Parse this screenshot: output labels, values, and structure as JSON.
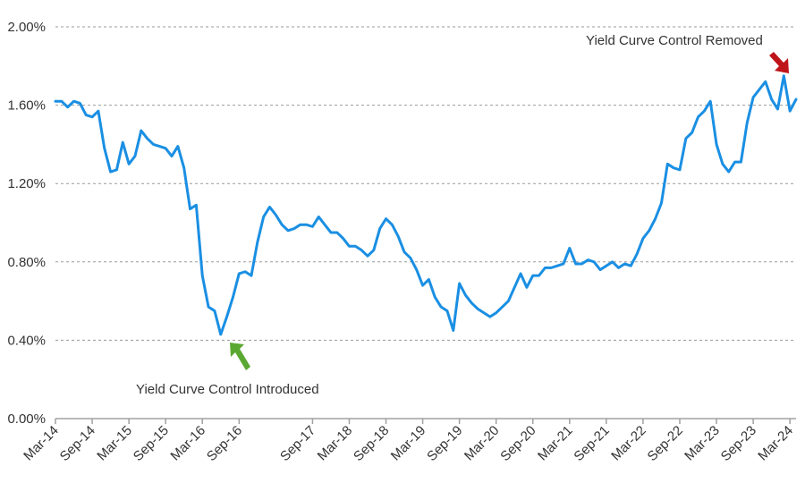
{
  "chart_data": {
    "type": "line",
    "title": "",
    "xlabel": "",
    "ylabel": "",
    "ylim": [
      0,
      2.0
    ],
    "grid": "horizontal dashed",
    "y_ticks": [
      "0.00%",
      "0.40%",
      "0.80%",
      "1.20%",
      "1.60%",
      "2.00%"
    ],
    "x_tick_labels": [
      "Mar-14",
      "Sep-14",
      "Mar-15",
      "Sep-15",
      "Mar-16",
      "Sep-16",
      "Sep-17",
      "Mar-18",
      "Sep-18",
      "Mar-19",
      "Sep-19",
      "Mar-20",
      "Sep-20",
      "Mar-21",
      "Sep-21",
      "Mar-22",
      "Sep-22",
      "Mar-23",
      "Sep-23",
      "Mar-24"
    ],
    "x_tick_months": [
      0,
      6,
      12,
      18,
      24,
      30,
      42,
      48,
      54,
      60,
      66,
      72,
      78,
      84,
      90,
      96,
      102,
      108,
      114,
      120
    ],
    "x_start": "Mar-14",
    "line_color": "#1a8fe3",
    "series": [
      {
        "values": [
          1.62,
          1.62,
          1.59,
          1.62,
          1.61,
          1.55,
          1.54,
          1.57,
          1.38,
          1.26,
          1.27,
          1.41,
          1.3,
          1.34,
          1.47,
          1.43,
          1.4,
          1.39,
          1.38,
          1.34,
          1.39,
          1.28,
          1.07,
          1.09,
          0.73,
          0.57,
          0.55,
          0.43,
          0.52,
          0.62,
          0.74,
          0.75,
          0.73,
          0.9,
          1.03,
          1.08,
          1.04,
          0.99,
          0.96,
          0.97,
          0.99,
          0.99,
          0.98,
          1.03,
          0.99,
          0.95,
          0.95,
          0.92,
          0.88,
          0.88,
          0.86,
          0.83,
          0.86,
          0.97,
          1.02,
          0.99,
          0.93,
          0.85,
          0.82,
          0.76,
          0.68,
          0.71,
          0.62,
          0.57,
          0.55,
          0.45,
          0.69,
          0.63,
          0.59,
          0.56,
          0.54,
          0.52,
          0.54,
          0.57,
          0.6,
          0.67,
          0.74,
          0.67,
          0.73,
          0.73,
          0.77,
          0.77,
          0.78,
          0.79,
          0.87,
          0.79,
          0.79,
          0.81,
          0.8,
          0.76,
          0.78,
          0.8,
          0.77,
          0.79,
          0.78,
          0.84,
          0.92,
          0.96,
          1.02,
          1.1,
          1.3,
          1.28,
          1.27,
          1.43,
          1.46,
          1.54,
          1.57,
          1.62,
          1.4,
          1.3,
          1.26,
          1.31,
          1.31,
          1.51,
          1.64,
          1.68,
          1.72,
          1.63,
          1.58,
          1.75,
          1.57,
          1.63
        ]
      }
    ],
    "annotations": [
      {
        "text": "Yield Curve Control Introduced",
        "arrow_color": "#5aa832"
      },
      {
        "text": "Yield Curve Control Removed",
        "arrow_color": "#c0141b"
      }
    ]
  }
}
